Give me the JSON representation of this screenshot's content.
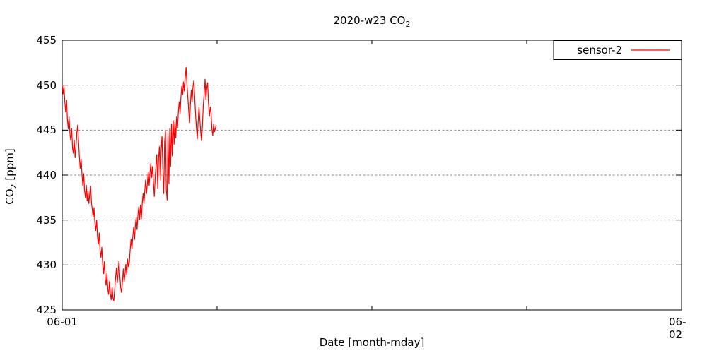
{
  "title": {
    "text": "2020-w23 CO",
    "subscript": "2"
  },
  "colors": {
    "series": "#ff0000",
    "grid": "#8c8c8c",
    "axis": "#000000",
    "background": "#ffffff",
    "text": "#000000"
  },
  "legend": {
    "label": "sensor-2",
    "position": "top-right"
  },
  "axes": {
    "y": {
      "label_main": "CO",
      "label_sub": "2",
      "label_rest": " [ppm]",
      "min": 425,
      "max": 455,
      "ticks": [
        425,
        430,
        435,
        440,
        445,
        450,
        455
      ]
    },
    "x": {
      "label": "Date [month-mday]",
      "range_hours": 24,
      "ticks": [
        {
          "label": "06-01",
          "hour": 0
        },
        {
          "label": "06-02",
          "hour": 24
        }
      ],
      "minor_hours": [
        6,
        12,
        18
      ]
    }
  },
  "chart_data": {
    "type": "line",
    "title": "2020-w23 CO2",
    "xlabel": "Date [month-mday]",
    "ylabel": "CO2 [ppm]",
    "ylim": [
      425,
      455
    ],
    "x_range": [
      "06-01 00:00",
      "06-02 00:00"
    ],
    "grid": "horizontal-dotted-only",
    "legend_position": "top-right-inside-boxed",
    "series": [
      {
        "name": "sensor-2",
        "color": "#ff0000",
        "unit": "ppm",
        "start_minute": 0,
        "step_minutes": 2,
        "values": [
          450.0,
          449.0,
          449.9,
          448.2,
          447.0,
          448.4,
          446.3,
          445.1,
          446.5,
          444.6,
          443.8,
          445.2,
          443.0,
          442.4,
          443.9,
          441.9,
          443.1,
          444.7,
          445.6,
          443.8,
          442.0,
          440.7,
          441.8,
          440.1,
          438.8,
          440.2,
          438.3,
          437.5,
          438.9,
          437.1,
          438.2,
          436.8,
          437.9,
          438.8,
          436.9,
          436.1,
          435.3,
          436.4,
          434.7,
          433.8,
          435.0,
          433.1,
          432.3,
          433.6,
          431.7,
          430.8,
          432.0,
          430.1,
          429.0,
          430.4,
          428.5,
          427.7,
          429.1,
          427.3,
          426.7,
          428.2,
          426.8,
          426.1,
          427.6,
          426.3,
          426.0,
          427.3,
          428.5,
          429.7,
          428.0,
          429.2,
          430.5,
          428.8,
          427.5,
          426.9,
          428.2,
          429.6,
          428.1,
          429.0,
          430.1,
          428.9,
          430.7,
          429.8,
          430.2,
          431.7,
          432.9,
          431.8,
          433.1,
          434.2,
          432.8,
          434.4,
          435.3,
          433.9,
          435.6,
          436.5,
          435.0,
          436.7,
          435.1,
          436.9,
          438.0,
          436.8,
          438.3,
          439.5,
          437.9,
          439.1,
          440.4,
          438.8,
          440.2,
          441.3,
          439.7,
          441.0,
          439.2,
          437.6,
          439.6,
          441.1,
          442.3,
          438.5,
          441.9,
          443.2,
          439.4,
          442.8,
          444.3,
          440.6,
          437.9,
          443.7,
          444.9,
          438.4,
          437.2,
          444.6,
          439.0,
          445.2,
          440.9,
          445.7,
          442.1,
          446.1,
          443.4,
          445.9,
          444.1,
          446.5,
          445.2,
          447.1,
          448.2,
          446.8,
          448.7,
          449.9,
          448.9,
          450.4,
          449.3,
          450.9,
          452.0,
          450.0,
          448.8,
          447.1,
          445.8,
          447.9,
          449.5,
          448.1,
          449.8,
          450.5,
          448.6,
          446.7,
          445.2,
          444.0,
          445.9,
          447.6,
          446.1,
          444.7,
          443.8,
          445.6,
          447.8,
          449.2,
          450.7,
          448.4,
          449.7,
          450.3,
          448.0,
          446.5,
          447.6,
          446.9,
          445.1,
          444.4,
          445.7,
          444.8,
          445.2,
          445.6
        ]
      }
    ]
  }
}
